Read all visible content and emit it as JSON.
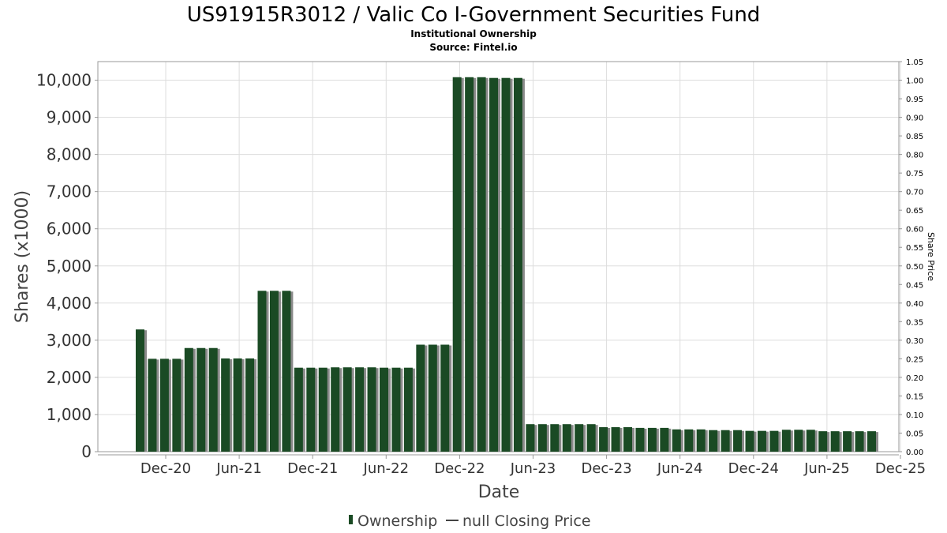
{
  "title": "US91915R3012 / Valic Co I-Government Securities Fund",
  "subtitle": "Institutional Ownership",
  "source": "Source: Fintel.io",
  "legend": {
    "ownership": "Ownership",
    "price": "null Closing Price"
  },
  "colors": {
    "bar": "#1a4a24",
    "bar_shadow": "#8a8a8a",
    "grid": "#dddddd",
    "frame": "#999999"
  },
  "chart_data": {
    "type": "bar",
    "xlabel": "Date",
    "ylabel": "Shares (x1000)",
    "y2label": "Share Price",
    "ylim": [
      0,
      10500
    ],
    "y2lim": [
      0,
      1.05
    ],
    "grid": true,
    "legend_position": "bottom",
    "yticks": [
      "0",
      "1,000",
      "2,000",
      "3,000",
      "4,000",
      "5,000",
      "6,000",
      "7,000",
      "8,000",
      "9,000",
      "10,000"
    ],
    "y2ticks": [
      "0.00",
      "0.05",
      "0.10",
      "0.15",
      "0.20",
      "0.25",
      "0.30",
      "0.35",
      "0.40",
      "0.45",
      "0.50",
      "0.55",
      "0.60",
      "0.65",
      "0.70",
      "0.75",
      "0.80",
      "0.85",
      "0.90",
      "0.95",
      "1.00",
      "1.05"
    ],
    "xticks": [
      "Dec-20",
      "Jun-21",
      "Dec-21",
      "Jun-22",
      "Dec-22",
      "Jun-23",
      "Dec-23",
      "Jun-24",
      "Dec-24",
      "Jun-25",
      "Dec-25"
    ],
    "series": [
      {
        "name": "Ownership",
        "values": [
          3290,
          2500,
          2500,
          2500,
          2790,
          2790,
          2790,
          2510,
          2510,
          2510,
          4330,
          4330,
          4330,
          2260,
          2260,
          2260,
          2270,
          2270,
          2270,
          2270,
          2260,
          2260,
          2260,
          2880,
          2880,
          2880,
          10080,
          10080,
          10080,
          10060,
          10060,
          10060,
          740,
          740,
          740,
          740,
          740,
          740,
          660,
          660,
          660,
          640,
          640,
          640,
          600,
          600,
          600,
          580,
          580,
          580,
          560,
          560,
          560,
          590,
          590,
          590,
          550,
          550,
          550,
          550,
          550
        ]
      }
    ]
  }
}
